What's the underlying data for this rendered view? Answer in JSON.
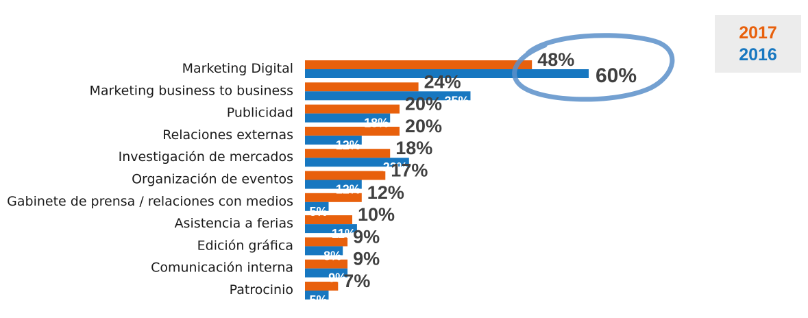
{
  "chart_data": {
    "type": "bar",
    "orientation": "horizontal",
    "categories": [
      "Marketing Digital",
      "Marketing business to business",
      "Publicidad",
      "Relaciones externas",
      "Investigación de mercados",
      "Organización de eventos",
      "Gabinete de prensa / relaciones con medios",
      "Asistencia a ferias",
      "Edición gráfica",
      "Comunicación interna",
      "Patrocinio"
    ],
    "series": [
      {
        "name": "2017",
        "color": "#e8600c",
        "values": [
          48,
          24,
          20,
          20,
          18,
          17,
          12,
          10,
          9,
          9,
          7
        ],
        "labels": [
          "48%",
          "24%",
          "20%",
          "20%",
          "18%",
          "17%",
          "12%",
          "10%",
          "9%",
          "9%",
          "7%"
        ]
      },
      {
        "name": "2016",
        "color": "#1777c0",
        "values": [
          60,
          35,
          18,
          12,
          22,
          12,
          5,
          11,
          8,
          9,
          5
        ],
        "labels": [
          "60%",
          "35%",
          "18%",
          "12%",
          "22%",
          "12%",
          "5%",
          "11%",
          "8%",
          "9%",
          "5%"
        ]
      }
    ],
    "xlim": [
      0,
      60
    ],
    "title": "",
    "xlabel": "",
    "ylabel": "",
    "grid": false,
    "legend_position": "top-right",
    "highlight": {
      "category": "Marketing Digital",
      "shape": "hand-drawn ellipse",
      "color": "#5b8fc9"
    }
  }
}
